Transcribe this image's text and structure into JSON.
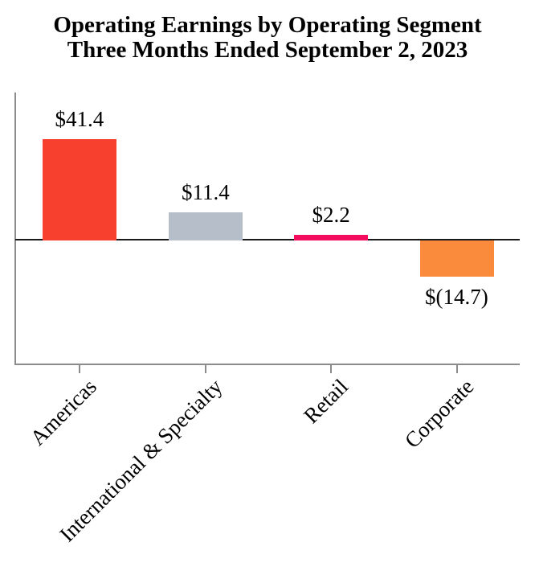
{
  "chart_data": {
    "type": "bar",
    "title": "Operating Earnings by Operating Segment",
    "subtitle": "Three Months Ended September 2, 2023",
    "categories": [
      "Americas",
      "International & Specialty",
      "Retail",
      "Corporate"
    ],
    "values": [
      41.4,
      11.4,
      2.2,
      -14.7
    ],
    "value_labels": [
      "$41.4",
      "$11.4",
      "$2.2",
      "$(14.7)"
    ],
    "bar_colors": [
      "#f8402f",
      "#b6bfc9",
      "#f20d5e",
      "#fa8b3c"
    ],
    "ylim": [
      -50.6,
      60.2
    ],
    "xlabel": "",
    "ylabel": "",
    "grid": false,
    "legend": false,
    "axis_color": "#8c8c8c",
    "baseline_color": "#1a1a1a",
    "text_color": "#000000"
  }
}
